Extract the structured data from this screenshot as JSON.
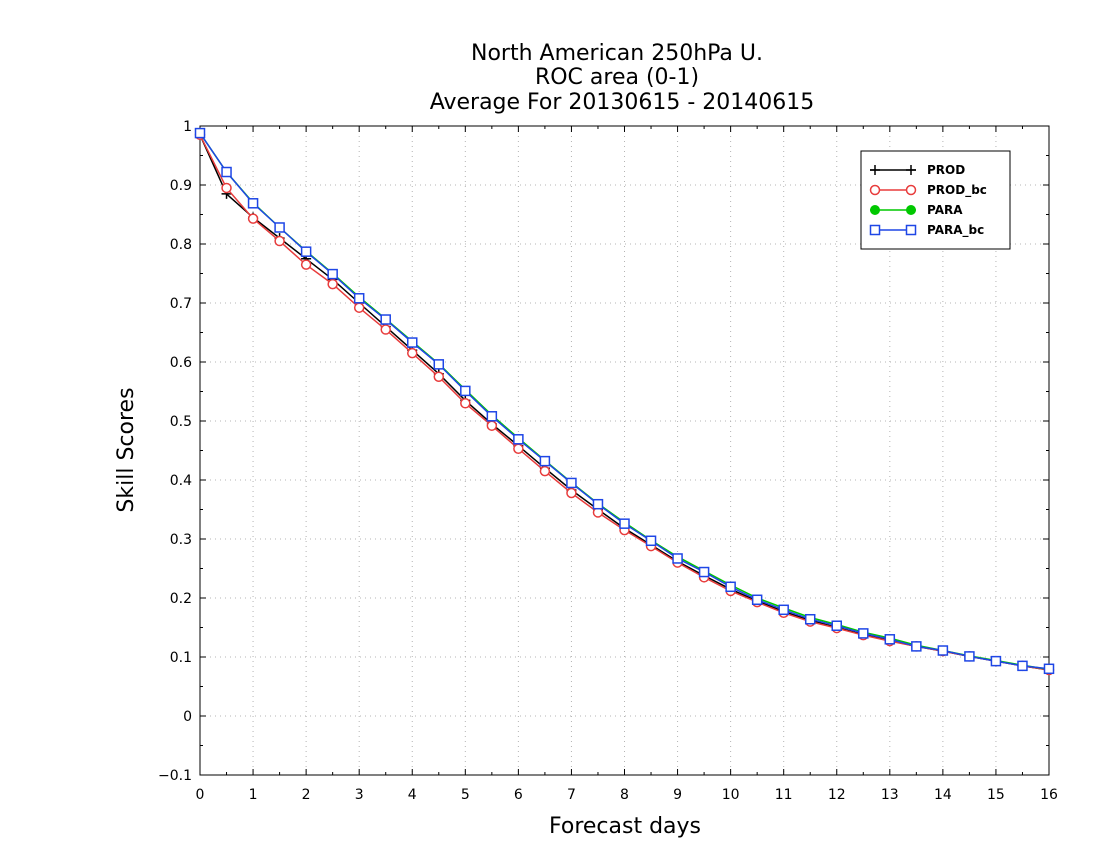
{
  "chart_data": {
    "type": "line",
    "title": [
      "North American 250hPa U.",
      "ROC area (0-1)",
      "Average For 20130615 - 20140615"
    ],
    "xlabel": "Forecast days",
    "ylabel": "Skill Scores",
    "xlim": [
      0,
      16
    ],
    "ylim": [
      -0.1,
      1
    ],
    "xticks": [
      "0",
      "1",
      "2",
      "3",
      "4",
      "5",
      "6",
      "7",
      "8",
      "9",
      "10",
      "11",
      "12",
      "13",
      "14",
      "15",
      "16"
    ],
    "yticks": [
      "−0.1",
      "0",
      "0.1",
      "0.2",
      "0.3",
      "0.4",
      "0.5",
      "0.6",
      "0.7",
      "0.8",
      "0.9",
      "1"
    ],
    "grid": true,
    "legend_position": "top-right",
    "x": [
      0,
      0.5,
      1,
      1.5,
      2,
      2.5,
      3,
      3.5,
      4,
      4.5,
      5,
      5.5,
      6,
      6.5,
      7,
      7.5,
      8,
      8.5,
      9,
      9.5,
      10,
      10.5,
      11,
      11.5,
      12,
      12.5,
      13,
      13.5,
      14,
      14.5,
      15,
      15.5,
      16
    ],
    "series": [
      {
        "name": "PROD",
        "color": "#000000",
        "marker": "plus",
        "values": [
          0.985,
          0.885,
          0.845,
          0.81,
          0.775,
          0.74,
          0.7,
          0.66,
          0.62,
          0.58,
          0.535,
          0.495,
          0.458,
          0.42,
          0.383,
          0.35,
          0.318,
          0.29,
          0.262,
          0.238,
          0.215,
          0.195,
          0.177,
          0.162,
          0.15,
          0.138,
          0.128,
          0.118,
          0.11,
          0.101,
          0.093,
          0.085,
          0.078
        ]
      },
      {
        "name": "PROD_bc",
        "color": "#e83c3c",
        "marker": "circle",
        "values": [
          0.985,
          0.895,
          0.843,
          0.805,
          0.765,
          0.732,
          0.692,
          0.655,
          0.615,
          0.575,
          0.53,
          0.492,
          0.453,
          0.415,
          0.378,
          0.345,
          0.315,
          0.288,
          0.26,
          0.235,
          0.212,
          0.193,
          0.175,
          0.16,
          0.149,
          0.137,
          0.127,
          0.118,
          0.11,
          0.101,
          0.093,
          0.085,
          0.078
        ]
      },
      {
        "name": "PARA",
        "color": "#00c800",
        "marker": "dot",
        "values": [
          0.988,
          0.922,
          0.87,
          0.828,
          0.788,
          0.75,
          0.71,
          0.673,
          0.635,
          0.597,
          0.553,
          0.51,
          0.471,
          0.433,
          0.396,
          0.36,
          0.328,
          0.298,
          0.27,
          0.246,
          0.222,
          0.2,
          0.183,
          0.167,
          0.155,
          0.142,
          0.132,
          0.12,
          0.111,
          0.102,
          0.094,
          0.086,
          0.079
        ]
      },
      {
        "name": "PARA_bc",
        "color": "#1e46e6",
        "marker": "square",
        "values": [
          0.988,
          0.922,
          0.869,
          0.828,
          0.787,
          0.749,
          0.708,
          0.672,
          0.633,
          0.596,
          0.551,
          0.508,
          0.469,
          0.432,
          0.395,
          0.359,
          0.326,
          0.297,
          0.267,
          0.244,
          0.219,
          0.197,
          0.18,
          0.164,
          0.153,
          0.14,
          0.13,
          0.118,
          0.111,
          0.101,
          0.093,
          0.085,
          0.08
        ]
      }
    ]
  }
}
